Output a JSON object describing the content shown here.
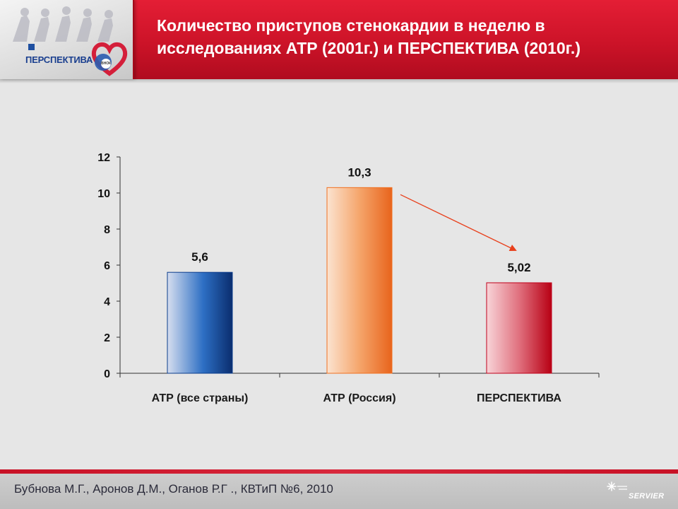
{
  "header": {
    "title": "Количество приступов стенокардии в неделю  в\nисследованиях АТР (2001г.) и ПЕРСПЕКТИВА (2010г.)",
    "logo_text": "ПЕРСПЕКТИВА",
    "logo_badge": "ВНОК"
  },
  "chart_data": {
    "type": "bar",
    "categories": [
      "АТР (все страны)",
      "АТР (Россия)",
      "ПЕРСПЕКТИВА"
    ],
    "values": [
      5.6,
      10.3,
      5.02
    ],
    "value_labels": [
      "5,6",
      "10,3",
      "5,02"
    ],
    "ylim": [
      0,
      12
    ],
    "yticks": [
      0,
      2,
      4,
      6,
      8,
      10,
      12
    ],
    "grid": false,
    "bar_colors": [
      "#0b3c8c",
      "#f07020",
      "#c0001a"
    ],
    "annotation": "arrow from 10,3 to 5,02"
  },
  "footer": {
    "citation": "Бубнова М.Г., Аронов Д.М., Оганов Р.Г ., КВТиП №6, 2010",
    "brand": "SERVIER"
  },
  "colors": {
    "header_red": "#cc1328",
    "background": "#e6e6e6",
    "arrow": "#e8401c"
  }
}
